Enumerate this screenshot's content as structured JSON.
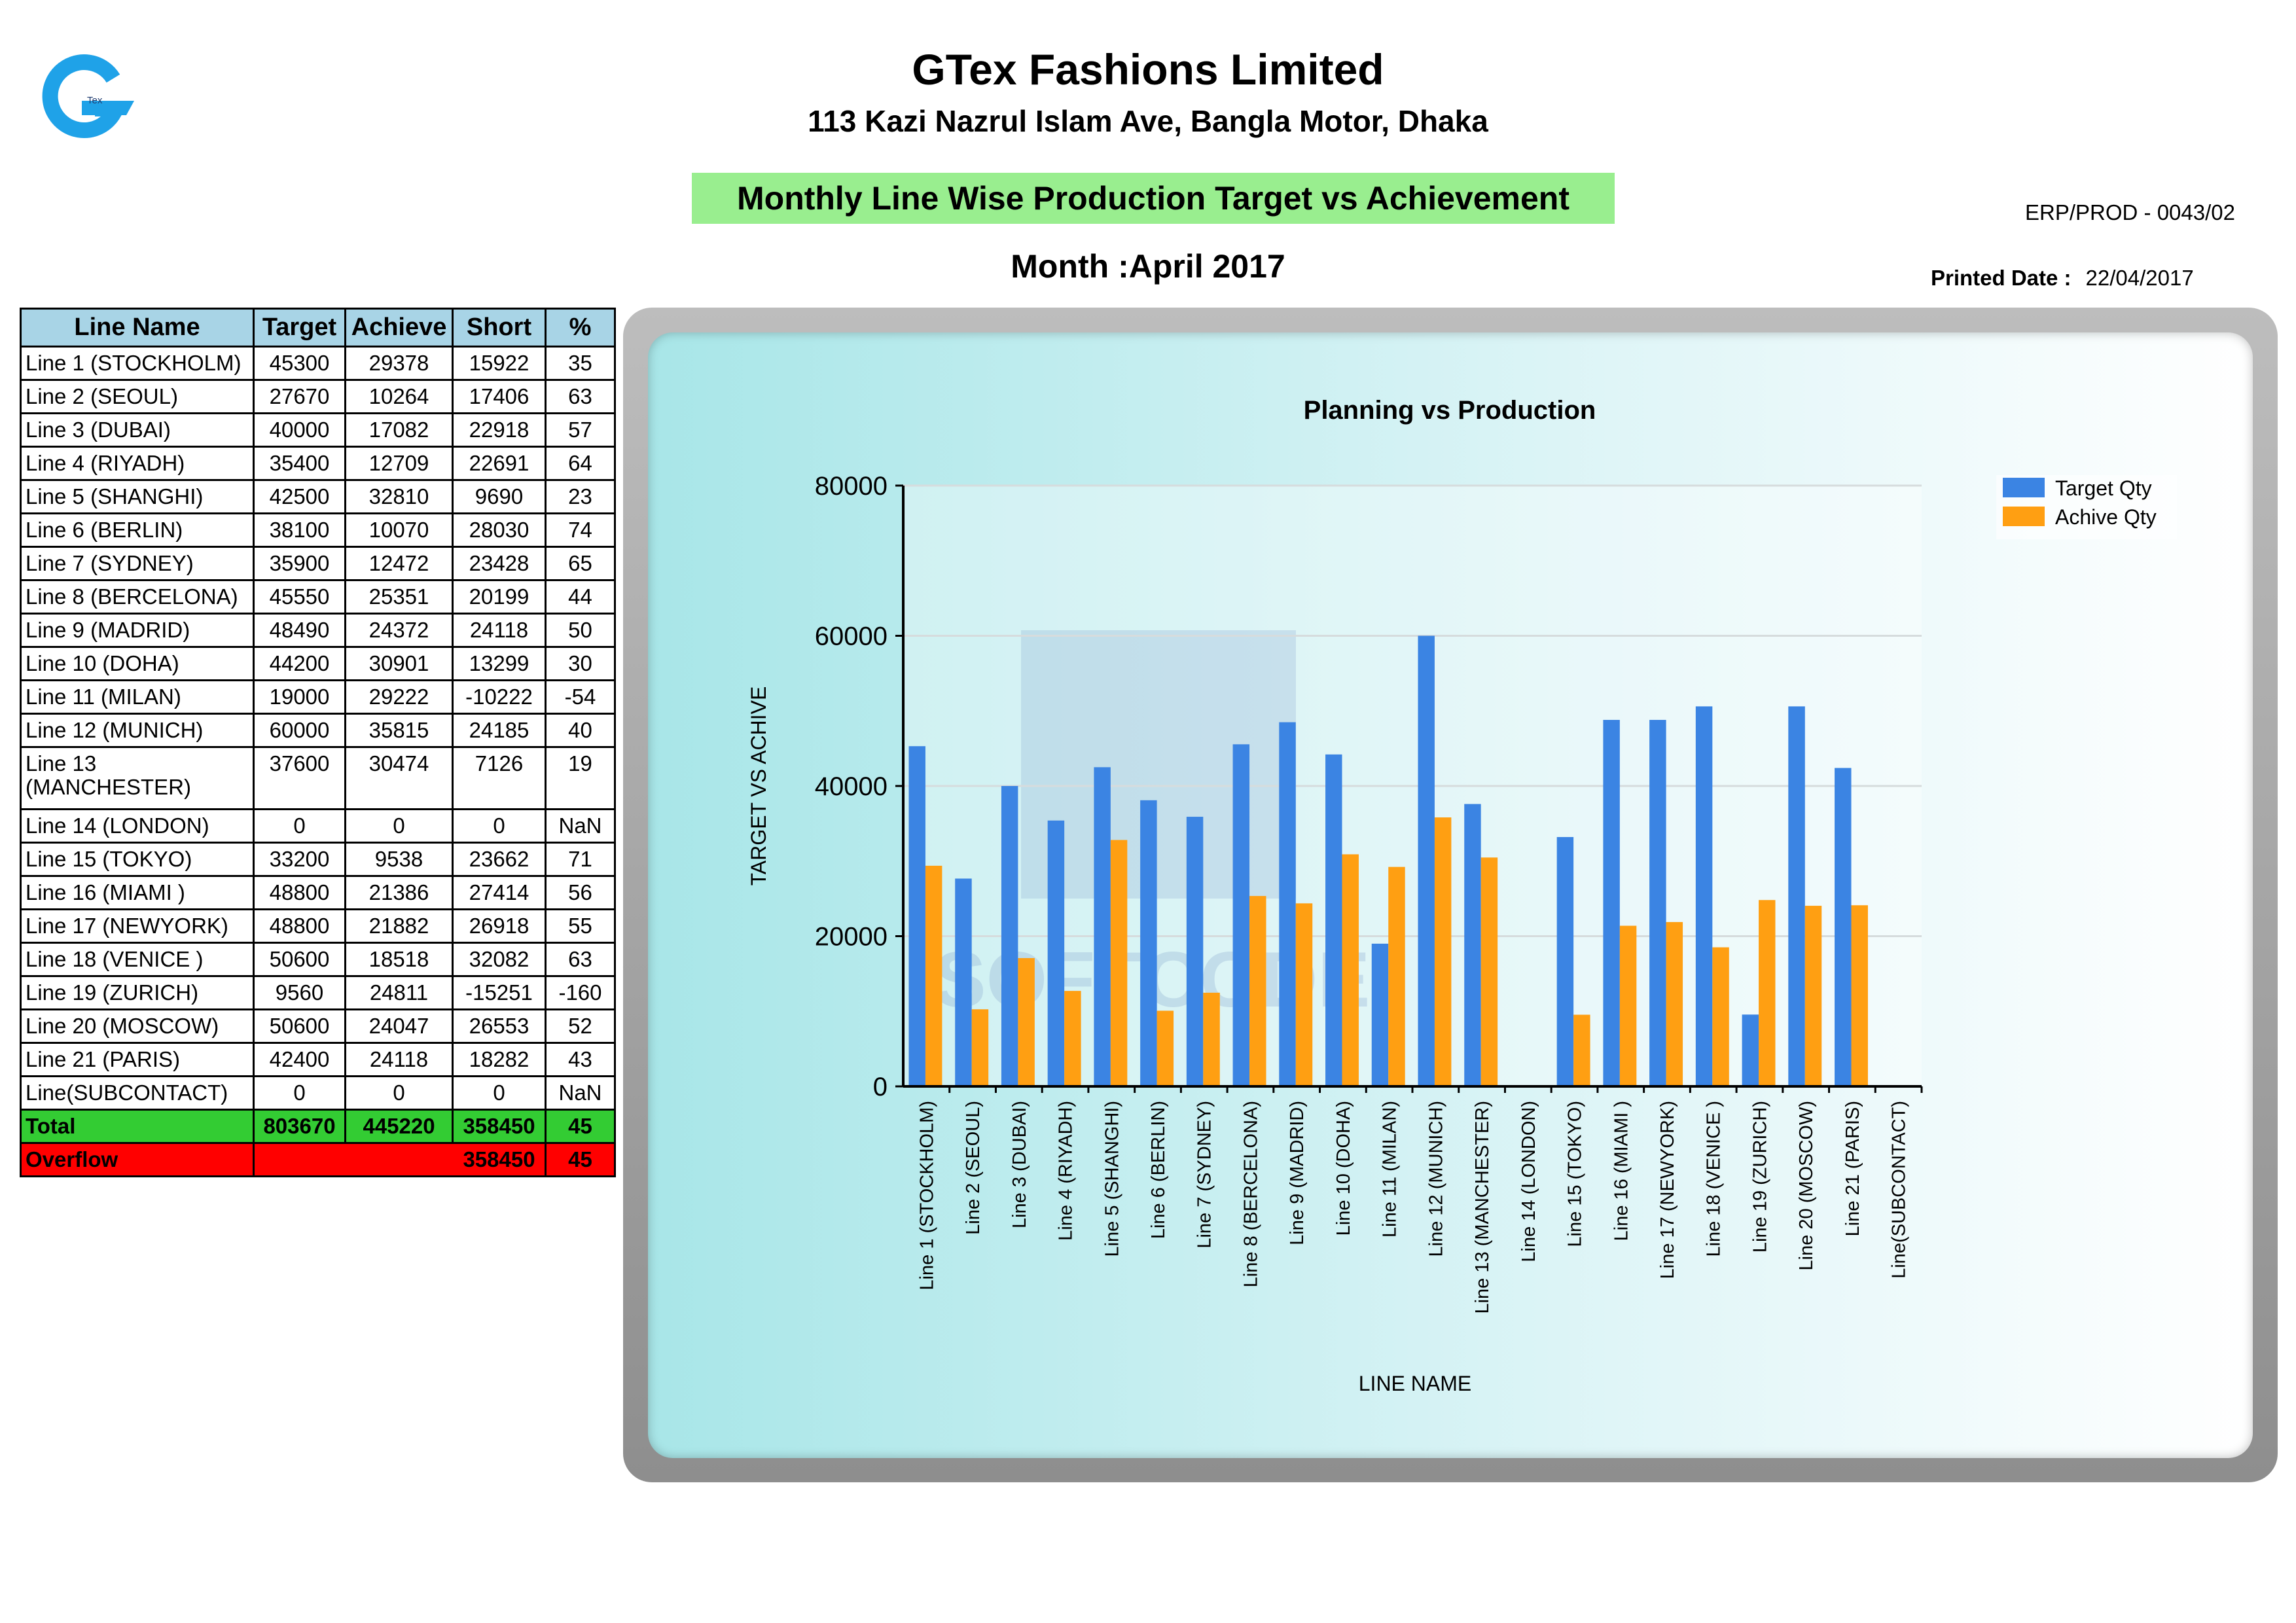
{
  "header": {
    "company_name": "GTex Fashions Limited",
    "company_address": "113 Kazi Nazrul Islam Ave, Bangla Motor, Dhaka",
    "logo_text": "Tex",
    "report_title": "Monthly Line Wise Production Target vs Achievement",
    "doc_code": "ERP/PROD - 0043/02",
    "month_label": "Month :April 2017",
    "printed_date_label": "Printed Date :",
    "printed_date": "22/04/2017"
  },
  "table": {
    "headers": [
      "Line Name",
      "Target",
      "Achieve",
      "Short",
      "%"
    ],
    "rows": [
      {
        "name": "Line 1 (STOCKHOLM)",
        "target": "45300",
        "achieve": "29378",
        "short": "15922",
        "pct": "35"
      },
      {
        "name": "Line 2 (SEOUL)",
        "target": "27670",
        "achieve": "10264",
        "short": "17406",
        "pct": "63"
      },
      {
        "name": "Line 3 (DUBAI)",
        "target": "40000",
        "achieve": "17082",
        "short": "22918",
        "pct": "57"
      },
      {
        "name": "Line 4 (RIYADH)",
        "target": "35400",
        "achieve": "12709",
        "short": "22691",
        "pct": "64"
      },
      {
        "name": "Line 5 (SHANGHI)",
        "target": "42500",
        "achieve": "32810",
        "short": "9690",
        "pct": "23"
      },
      {
        "name": "Line 6 (BERLIN)",
        "target": "38100",
        "achieve": "10070",
        "short": "28030",
        "pct": "74"
      },
      {
        "name": "Line 7 (SYDNEY)",
        "target": "35900",
        "achieve": "12472",
        "short": "23428",
        "pct": "65"
      },
      {
        "name": "Line 8 (BERCELONA)",
        "target": "45550",
        "achieve": "25351",
        "short": "20199",
        "pct": "44"
      },
      {
        "name": "Line 9 (MADRID)",
        "target": "48490",
        "achieve": "24372",
        "short": "24118",
        "pct": "50"
      },
      {
        "name": "Line 10 (DOHA)",
        "target": "44200",
        "achieve": "30901",
        "short": "13299",
        "pct": "30"
      },
      {
        "name": "Line 11 (MILAN)",
        "target": "19000",
        "achieve": "29222",
        "short": "-10222",
        "pct": "-54"
      },
      {
        "name": "Line 12 (MUNICH)",
        "target": "60000",
        "achieve": "35815",
        "short": "24185",
        "pct": "40"
      },
      {
        "name": "Line 13 (MANCHESTER)",
        "target": "37600",
        "achieve": "30474",
        "short": "7126",
        "pct": "19",
        "tall": true
      },
      {
        "name": "Line 14 (LONDON)",
        "target": "0",
        "achieve": "0",
        "short": "0",
        "pct": "NaN"
      },
      {
        "name": "Line 15 (TOKYO)",
        "target": "33200",
        "achieve": "9538",
        "short": "23662",
        "pct": "71"
      },
      {
        "name": "Line 16 (MIAMI )",
        "target": "48800",
        "achieve": "21386",
        "short": "27414",
        "pct": "56"
      },
      {
        "name": "Line 17 (NEWYORK)",
        "target": "48800",
        "achieve": "21882",
        "short": "26918",
        "pct": "55"
      },
      {
        "name": "Line 18 (VENICE )",
        "target": "50600",
        "achieve": "18518",
        "short": "32082",
        "pct": "63"
      },
      {
        "name": "Line 19 (ZURICH)",
        "target": "9560",
        "achieve": "24811",
        "short": "-15251",
        "pct": "-160"
      },
      {
        "name": "Line 20 (MOSCOW)",
        "target": "50600",
        "achieve": "24047",
        "short": "26553",
        "pct": "52"
      },
      {
        "name": "Line 21 (PARIS)",
        "target": "42400",
        "achieve": "24118",
        "short": "18282",
        "pct": "43"
      },
      {
        "name": "Line(SUBCONTACT)",
        "target": "0",
        "achieve": "0",
        "short": "0",
        "pct": "NaN"
      }
    ],
    "total": {
      "label": "Total",
      "target": "803670",
      "achieve": "445220",
      "short": "358450",
      "pct": "45"
    },
    "overflow": {
      "label": "Overflow",
      "short": "358450",
      "pct": "45"
    }
  },
  "colors": {
    "target": "#3b84e3",
    "achieve": "#ff9f12",
    "title_box": "#99ee8f",
    "table_header": "#a8d4e6",
    "total_row": "#33cc33",
    "overflow_row": "#ff0000"
  },
  "watermark": {
    "text": "SOFTCODE"
  },
  "chart_data": {
    "type": "bar",
    "title": "Planning vs Production",
    "xlabel": "LINE NAME",
    "ylabel": "TARGET VS ACHIVE",
    "ylim": [
      0,
      80000
    ],
    "yticks": [
      0,
      20000,
      40000,
      60000,
      80000
    ],
    "grid": true,
    "legend": "top-right",
    "categories": [
      "Line 1 (STOCKHOLM)",
      "Line 2 (SEOUL)",
      "Line 3 (DUBAI)",
      "Line 4 (RIYADH)",
      "Line 5 (SHANGHI)",
      "Line 6 (BERLIN)",
      "Line 7 (SYDNEY)",
      "Line 8 (BERCELONA)",
      "Line 9 (MADRID)",
      "Line 10 (DOHA)",
      "Line 11 (MILAN)",
      "Line 12 (MUNICH)",
      "Line 13 (MANCHESTER)",
      "Line 14 (LONDON)",
      "Line 15 (TOKYO)",
      "Line 16 (MIAMI )",
      "Line 17 (NEWYORK)",
      "Line 18 (VENICE )",
      "Line 19 (ZURICH)",
      "Line 20 (MOSCOW)",
      "Line 21 (PARIS)",
      "Line(SUBCONTACT)"
    ],
    "series": [
      {
        "name": "Target Qty",
        "values": [
          45300,
          27670,
          40000,
          35400,
          42500,
          38100,
          35900,
          45550,
          48490,
          44200,
          19000,
          60000,
          37600,
          0,
          33200,
          48800,
          48800,
          50600,
          9560,
          50600,
          42400,
          0
        ]
      },
      {
        "name": "Achive Qty",
        "values": [
          29378,
          10264,
          17082,
          12709,
          32810,
          10070,
          12472,
          25351,
          24372,
          30901,
          29222,
          35815,
          30474,
          0,
          9538,
          21386,
          21882,
          18518,
          24811,
          24047,
          24118,
          0
        ]
      }
    ]
  }
}
